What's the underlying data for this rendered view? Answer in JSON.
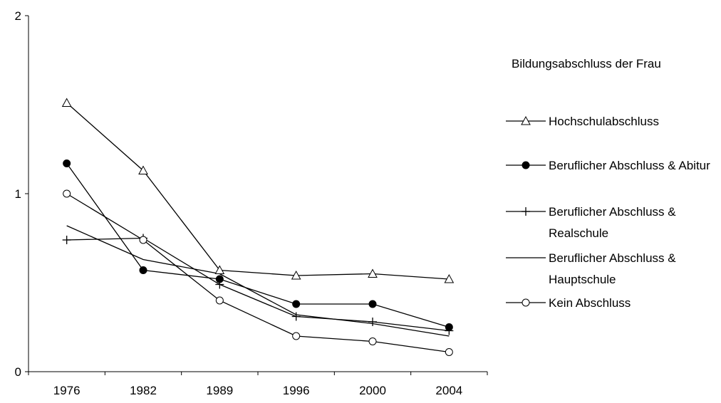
{
  "chart_data": {
    "type": "line",
    "categories": [
      "1976",
      "1982",
      "1989",
      "1996",
      "2000",
      "2004"
    ],
    "y_ticks": [
      "0",
      "1",
      "2"
    ],
    "ylim": [
      0,
      2
    ],
    "grid": false,
    "title": "",
    "xlabel": "",
    "ylabel": "",
    "legend_title": "Bildungsabschluss der Frau",
    "legend_position": "right",
    "series": [
      {
        "name": "Hochschulabschluss",
        "marker": "triangle-open",
        "values": [
          1.51,
          1.13,
          0.57,
          0.54,
          0.55,
          0.52
        ]
      },
      {
        "name": "Beruflicher Abschluss & Abitur",
        "marker": "circle-filled",
        "values": [
          1.17,
          0.57,
          0.52,
          0.38,
          0.38,
          0.25
        ]
      },
      {
        "name": "Beruflicher Abschluss & Realschule",
        "marker": "plus",
        "values": [
          0.74,
          0.75,
          0.49,
          0.31,
          0.28,
          0.23
        ]
      },
      {
        "name": "Beruflicher Abschluss & Hauptschule",
        "marker": "none",
        "values": [
          0.82,
          0.63,
          0.55,
          0.32,
          0.27,
          0.2
        ]
      },
      {
        "name": "Kein Abschluss",
        "marker": "circle-open",
        "values": [
          1.0,
          0.74,
          0.4,
          0.2,
          0.17,
          0.11
        ]
      }
    ]
  }
}
